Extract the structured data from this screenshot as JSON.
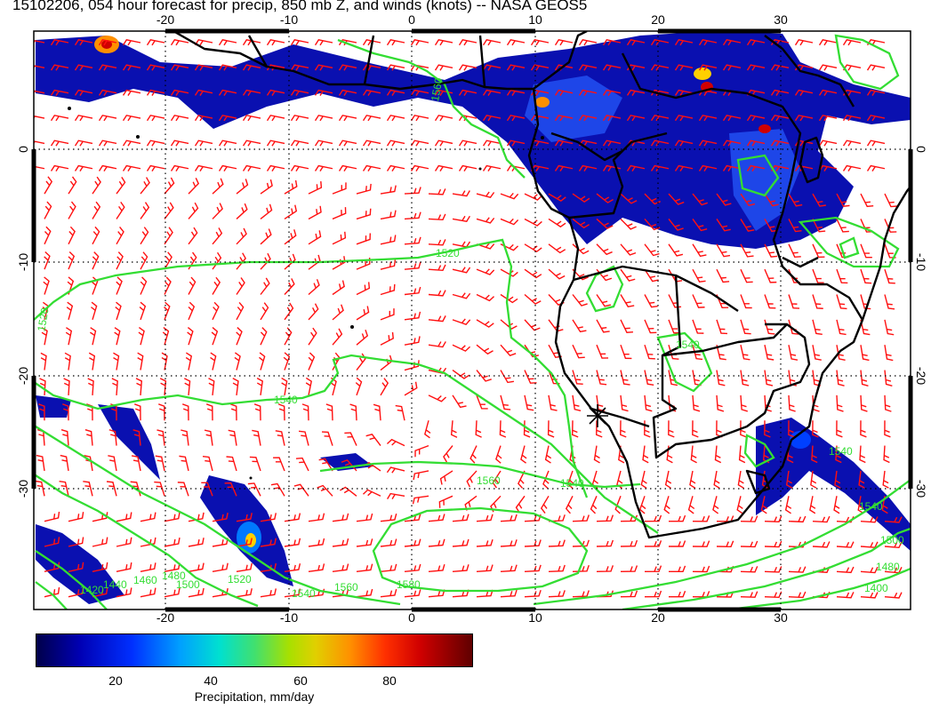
{
  "title": "15102206, 054 hour forecast for precip, 850 mb Z, and winds (knots) -- NASA GEOS5",
  "map": {
    "lon_range": [
      -30,
      40
    ],
    "lat_range": [
      -40,
      10
    ],
    "lon_ticks": [
      "-20",
      "-10",
      "0",
      "10",
      "20",
      "30"
    ],
    "lat_ticks": [
      "0",
      "-10",
      "-20",
      "-30"
    ],
    "contour_color": "#33dd33",
    "wind_barb_color": "#ff0000",
    "coastline_color": "#000000",
    "contour_labels": [
      "1520",
      "1520",
      "1540",
      "1560",
      "1540",
      "1580",
      "1560",
      "1540",
      "1520",
      "1500",
      "1480",
      "1460",
      "1440",
      "1420",
      "1400",
      "1540",
      "1500",
      "1480",
      "1540",
      "1540",
      "1560"
    ],
    "marker": "asterisk"
  },
  "colorbar": {
    "labels": [
      "20",
      "40",
      "60",
      "80"
    ],
    "title": "Precipitation, mm/day",
    "range": [
      0,
      100
    ],
    "colors": [
      "#00004a",
      "#0000b4",
      "#0030ff",
      "#00a0ff",
      "#00e0d0",
      "#40e070",
      "#a8e000",
      "#e0d000",
      "#ff9000",
      "#ff3000",
      "#d00000",
      "#600000"
    ]
  }
}
